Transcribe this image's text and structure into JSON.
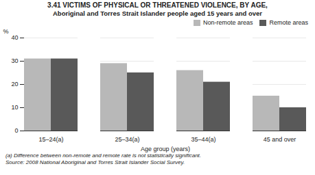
{
  "chart_data": {
    "type": "bar",
    "title": "3.41   VICTIMS OF PHYSICAL OR THREATENED VIOLENCE, BY AGE,",
    "subtitle": "Aboriginal and Torres Strait Islander people aged 15 years and over",
    "categories": [
      "15–24(a)",
      "25–34(a)",
      "35–44(a)",
      "45 and over"
    ],
    "series": [
      {
        "name": "Non-remote areas",
        "color": "#b8b8b8",
        "values": [
          31,
          29,
          26,
          15
        ]
      },
      {
        "name": "Remote areas",
        "color": "#595959",
        "values": [
          31,
          25,
          21,
          10
        ]
      }
    ],
    "xlabel": "Age group (years)",
    "ylabel": "%",
    "ylim": [
      0,
      40
    ],
    "yticks": [
      0,
      10,
      20,
      30,
      40
    ],
    "grid": true,
    "legend": "upper right",
    "annotations": [
      "(a) Difference between non-remote and remote rate is not statistically significant.",
      "Source: 2008 National Aboriginal and Torres Strait Islander Social Survey."
    ]
  }
}
